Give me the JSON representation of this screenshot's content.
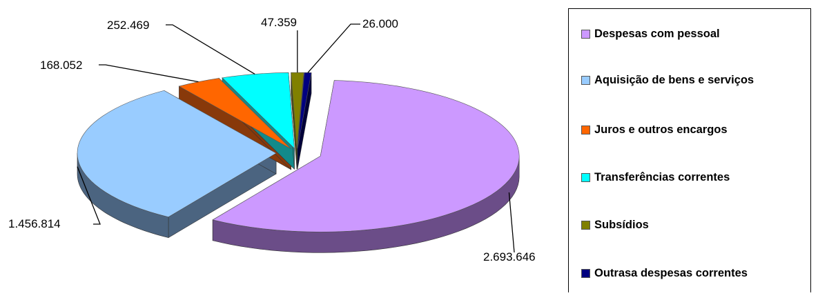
{
  "chart_data": {
    "type": "pie",
    "style": "3d-exploded",
    "categories": [
      "Despesas com pessoal",
      "Aquisição de bens e serviços",
      "Juros e outros encargos",
      "Transferências correntes",
      "Subsídios",
      "Outrasa despesas correntes"
    ],
    "values": [
      2693646,
      1456814,
      168052,
      252469,
      47359,
      26000
    ],
    "labels": [
      "2.693.646",
      "1.456.814",
      "168.052",
      "252.469",
      "47.359",
      "26.000"
    ],
    "colors": [
      "#cc99ff",
      "#99ccff",
      "#ff6600",
      "#00ffff",
      "#808000",
      "#000080"
    ],
    "side_colors": [
      "#6b4d88",
      "#4b6480",
      "#88390a",
      "#128a8a",
      "#4a4a10",
      "#00003a"
    ],
    "legend_position": "right",
    "title": ""
  }
}
